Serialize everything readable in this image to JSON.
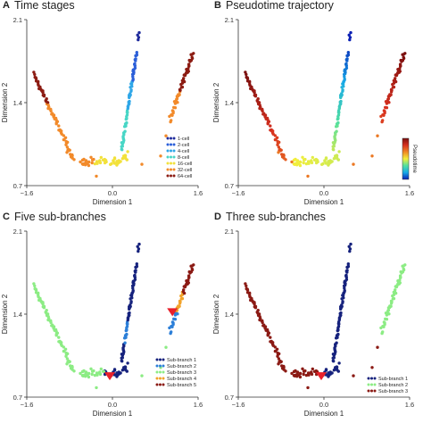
{
  "panels": [
    {
      "letter": "A",
      "title": "Time stages"
    },
    {
      "letter": "B",
      "title": "Pseudotime trajectory"
    },
    {
      "letter": "C",
      "title": "Five sub-branches"
    },
    {
      "letter": "D",
      "title": "Three sub-branches"
    }
  ],
  "axes": {
    "xlabel": "Dimension 1",
    "ylabel": "Dimension 2",
    "xticks": [
      "−1.6",
      "0.0",
      "1.6"
    ],
    "yticks": [
      "2.1",
      "1.4",
      "0.7"
    ]
  },
  "colorbar": {
    "label": "Pseudotime"
  },
  "chart_data": [
    {
      "type": "scatter",
      "title": "Time stages",
      "xlabel": "Dimension 1",
      "ylabel": "Dimension 2",
      "xlim": [
        -1.6,
        1.6
      ],
      "ylim": [
        0.7,
        2.1
      ],
      "legend_position": "bottom-right",
      "series": [
        {
          "name": "1-cell",
          "color": "#1f2b9c",
          "x": [
            0.48,
            0.48,
            0.5
          ],
          "y": [
            1.94,
            1.96,
            1.98
          ]
        },
        {
          "name": "2-cell",
          "color": "#2b5fd9",
          "x": [
            0.36,
            0.38,
            0.4,
            0.42
          ],
          "y": [
            1.75,
            1.68,
            1.62,
            1.58
          ]
        },
        {
          "name": "4-cell",
          "color": "#2fa7e8",
          "x": [
            0.3,
            0.32,
            0.34
          ],
          "y": [
            1.38,
            1.44,
            1.5
          ]
        },
        {
          "name": "8-cell",
          "color": "#48d6c6",
          "x": [
            0.2,
            0.24,
            0.28
          ],
          "y": [
            1.08,
            1.18,
            1.28
          ]
        },
        {
          "name": "16-cell",
          "color": "#f2e13a",
          "x": [
            -0.2,
            -0.05,
            0.1,
            0.2
          ],
          "y": [
            0.92,
            0.88,
            0.9,
            0.94
          ]
        },
        {
          "name": "32-cell",
          "color": "#f28a2a",
          "x": [
            -1.2,
            -1.0,
            -0.8,
            1.2,
            1.3
          ],
          "y": [
            1.3,
            1.1,
            0.95,
            1.35,
            1.45
          ]
        },
        {
          "name": "64-cell",
          "color": "#8c1c13",
          "x": [
            -1.45,
            -1.35,
            1.4,
            1.5
          ],
          "y": [
            1.6,
            1.45,
            1.6,
            1.75
          ]
        }
      ]
    },
    {
      "type": "scatter",
      "title": "Pseudotime trajectory",
      "xlabel": "Dimension 1",
      "ylabel": "Dimension 2",
      "xlim": [
        -1.6,
        1.6
      ],
      "ylim": [
        0.7,
        2.1
      ],
      "colorbar": "Pseudotime",
      "colormap": [
        "#0a1fb4",
        "#17a9e8",
        "#52e0a0",
        "#f3ee3b",
        "#f08a24",
        "#d7301f",
        "#7a0f0f"
      ]
    },
    {
      "type": "scatter",
      "title": "Five sub-branches",
      "xlabel": "Dimension 1",
      "ylabel": "Dimension 2",
      "xlim": [
        -1.6,
        1.6
      ],
      "ylim": [
        0.7,
        2.1
      ],
      "legend_position": "bottom-right",
      "series": [
        {
          "name": "Sub-branch 1",
          "color": "#16227d"
        },
        {
          "name": "Sub-branch 2",
          "color": "#2c7fd8"
        },
        {
          "name": "Sub-branch 3",
          "color": "#8cec84"
        },
        {
          "name": "Sub-branch 4",
          "color": "#f2a32a"
        },
        {
          "name": "Sub-branch 5",
          "color": "#8b1a14"
        }
      ]
    },
    {
      "type": "scatter",
      "title": "Three sub-branches",
      "xlabel": "Dimension 1",
      "ylabel": "Dimension 2",
      "xlim": [
        -1.6,
        1.6
      ],
      "ylim": [
        0.7,
        2.1
      ],
      "legend_position": "bottom-right",
      "series": [
        {
          "name": "Sub-branch 1",
          "color": "#16227d"
        },
        {
          "name": "Sub-branch 2",
          "color": "#8cec84"
        },
        {
          "name": "Sub-branch 3",
          "color": "#8b1a14"
        }
      ]
    }
  ]
}
